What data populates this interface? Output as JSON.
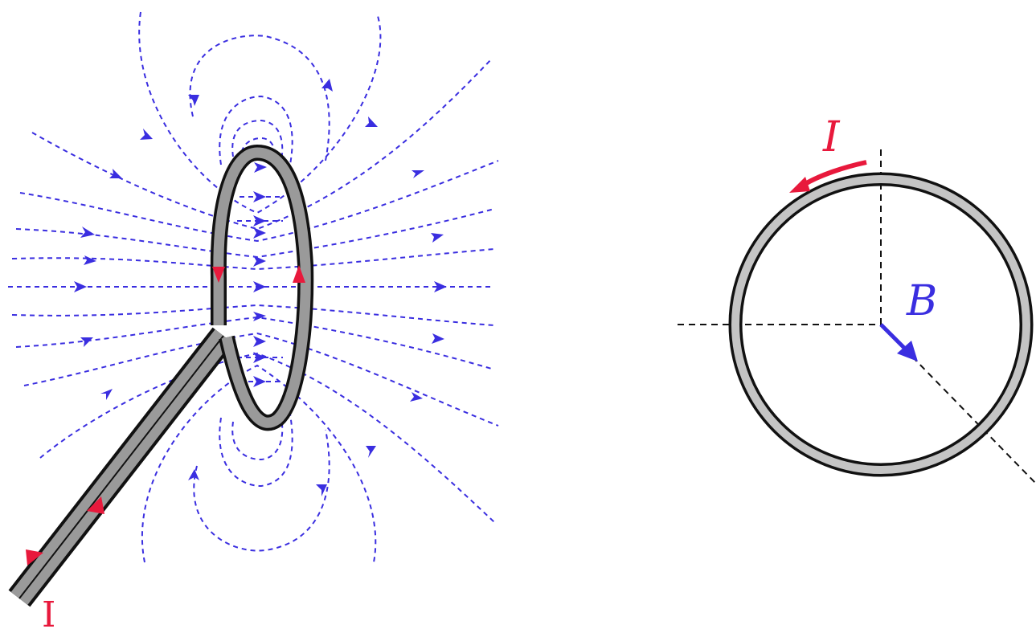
{
  "left_figure": {
    "current_label": "I"
  },
  "right_figure": {
    "current_label": "I",
    "field_label": "B"
  },
  "colors": {
    "current": "#e8193c",
    "field": "#3a2ee0",
    "wire_fill": "#9a9a9a",
    "wire_edge": "#111111",
    "ring_fill": "#c4c4c4"
  }
}
